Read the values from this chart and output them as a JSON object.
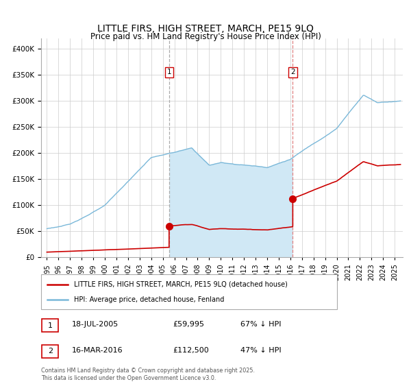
{
  "title": "LITTLE FIRS, HIGH STREET, MARCH, PE15 9LQ",
  "subtitle": "Price paid vs. HM Land Registry's House Price Index (HPI)",
  "legend_label_red": "LITTLE FIRS, HIGH STREET, MARCH, PE15 9LQ (detached house)",
  "legend_label_blue": "HPI: Average price, detached house, Fenland",
  "transaction1_label": "1",
  "transaction1_date": "18-JUL-2005",
  "transaction1_price": "£59,995",
  "transaction1_pct": "67% ↓ HPI",
  "transaction1_year": 2005.54,
  "transaction1_value": 59995,
  "transaction2_label": "2",
  "transaction2_date": "16-MAR-2016",
  "transaction2_price": "£112,500",
  "transaction2_pct": "47% ↓ HPI",
  "transaction2_year": 2016.21,
  "transaction2_value": 112500,
  "hpi_color": "#7ab8d9",
  "hpi_fill_color": "#d0e8f5",
  "price_color": "#cc0000",
  "background_color": "#ffffff",
  "grid_color": "#cccccc",
  "ylim": [
    0,
    420000
  ],
  "xlim_start": 1994.5,
  "xlim_end": 2025.7,
  "footnote": "Contains HM Land Registry data © Crown copyright and database right 2025.\nThis data is licensed under the Open Government Licence v3.0."
}
